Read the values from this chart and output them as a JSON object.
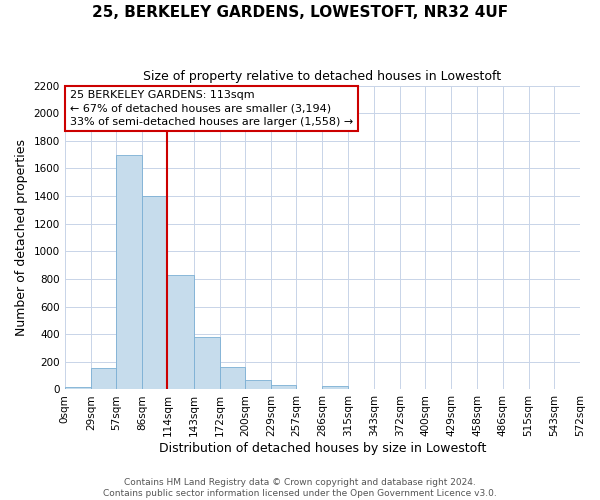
{
  "title": "25, BERKELEY GARDENS, LOWESTOFT, NR32 4UF",
  "subtitle": "Size of property relative to detached houses in Lowestoft",
  "xlabel": "Distribution of detached houses by size in Lowestoft",
  "ylabel": "Number of detached properties",
  "bin_edges": [
    0,
    29,
    57,
    86,
    114,
    143,
    172,
    200,
    229,
    257,
    286,
    315,
    343,
    372,
    400,
    429,
    458,
    486,
    515,
    543,
    572
  ],
  "bin_labels": [
    "0sqm",
    "29sqm",
    "57sqm",
    "86sqm",
    "114sqm",
    "143sqm",
    "172sqm",
    "200sqm",
    "229sqm",
    "257sqm",
    "286sqm",
    "315sqm",
    "343sqm",
    "372sqm",
    "400sqm",
    "429sqm",
    "458sqm",
    "486sqm",
    "515sqm",
    "543sqm",
    "572sqm"
  ],
  "counts": [
    20,
    155,
    1700,
    1400,
    830,
    380,
    160,
    65,
    35,
    5,
    25,
    5,
    0,
    0,
    0,
    0,
    0,
    0,
    0,
    0
  ],
  "bar_facecolor": "#c6dcec",
  "bar_edgecolor": "#7bafd4",
  "property_line_x": 114,
  "vline_color": "#cc0000",
  "ylim": [
    0,
    2200
  ],
  "yticks": [
    0,
    200,
    400,
    600,
    800,
    1000,
    1200,
    1400,
    1600,
    1800,
    2000,
    2200
  ],
  "annotation_text": "25 BERKELEY GARDENS: 113sqm\n← 67% of detached houses are smaller (3,194)\n33% of semi-detached houses are larger (1,558) →",
  "annotation_box_facecolor": "#ffffff",
  "annotation_box_edgecolor": "#cc0000",
  "footer_line1": "Contains HM Land Registry data © Crown copyright and database right 2024.",
  "footer_line2": "Contains public sector information licensed under the Open Government Licence v3.0.",
  "background_color": "#ffffff",
  "grid_color": "#c8d4e8",
  "title_fontsize": 11,
  "subtitle_fontsize": 9,
  "xlabel_fontsize": 9,
  "ylabel_fontsize": 9,
  "tick_fontsize": 7.5,
  "footer_fontsize": 6.5,
  "annotation_fontsize": 8
}
